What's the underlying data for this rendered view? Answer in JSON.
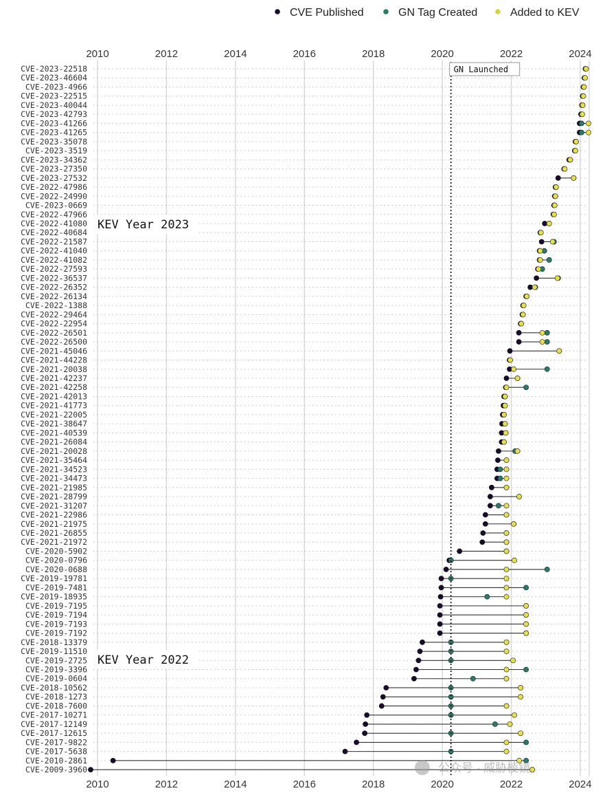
{
  "legend": {
    "placement": "top-right",
    "items": [
      {
        "label": "CVE Published",
        "color": "#1a0a2e"
      },
      {
        "label": "GN Tag Created",
        "color": "#2a7a6a"
      },
      {
        "label": "Added to KEV",
        "color": "#e8e04a"
      }
    ]
  },
  "annotations": {
    "gn_launched_label": "GN Launched",
    "gn_launched_x": 2020.25,
    "kev_year_2023_label": "KEV Year 2023",
    "kev_year_2022_label": "KEV Year 2022"
  },
  "watermark": "公众号 · 威胁棱镜",
  "chart_data": {
    "type": "dot-range",
    "xlim": [
      2009.8,
      2024.3
    ],
    "x_ticks": [
      2010,
      2012,
      2014,
      2016,
      2018,
      2020,
      2022,
      2024
    ],
    "grid": true,
    "colors": {
      "published": "#1a0a2e",
      "gn": "#2a7a6a",
      "kev": "#e8e04a"
    },
    "rows": [
      {
        "cve": "CVE-2023-22518",
        "published": 2024.15,
        "gn": 2024.17,
        "kev": 2024.17
      },
      {
        "cve": "CVE-2023-46604",
        "published": 2024.12,
        "gn": 2024.14,
        "kev": 2024.14
      },
      {
        "cve": "CVE-2023-4966",
        "published": 2024.09,
        "gn": 2024.11,
        "kev": 2024.11
      },
      {
        "cve": "CVE-2023-22515",
        "published": 2024.07,
        "gn": 2024.09,
        "kev": 2024.09
      },
      {
        "cve": "CVE-2023-40044",
        "published": 2024.05,
        "gn": 2024.07,
        "kev": 2024.07
      },
      {
        "cve": "CVE-2023-42793",
        "published": 2024.02,
        "gn": 2024.04,
        "kev": 2024.06
      },
      {
        "cve": "CVE-2023-41266",
        "published": 2023.98,
        "gn": 2024.04,
        "kev": 2024.24
      },
      {
        "cve": "CVE-2023-41265",
        "published": 2023.98,
        "gn": 2024.04,
        "kev": 2024.24
      },
      {
        "cve": "CVE-2023-35078",
        "published": 2023.86,
        "gn": 2023.88,
        "kev": 2023.88
      },
      {
        "cve": "CVE-2023-3519",
        "published": 2023.84,
        "gn": 2023.86,
        "kev": 2023.86
      },
      {
        "cve": "CVE-2023-34362",
        "published": 2023.68,
        "gn": 2023.71,
        "kev": 2023.71
      },
      {
        "cve": "CVE-2023-27350",
        "published": 2023.53,
        "gn": 2023.55,
        "kev": 2023.55
      },
      {
        "cve": "CVE-2023-27532",
        "published": 2023.36,
        "gn": 2023.81,
        "kev": 2023.81
      },
      {
        "cve": "CVE-2022-47986",
        "published": 2023.28,
        "gn": 2023.3,
        "kev": 2023.3
      },
      {
        "cve": "CVE-2022-24990",
        "published": 2023.26,
        "gn": 2023.28,
        "kev": 2023.28
      },
      {
        "cve": "CVE-2023-0669",
        "published": 2023.24,
        "gn": 2023.26,
        "kev": 2023.26
      },
      {
        "cve": "CVE-2022-47966",
        "published": 2023.22,
        "gn": 2023.24,
        "kev": 2023.24
      },
      {
        "cve": "CVE-2022-41080",
        "published": 2022.97,
        "gn": 2023.1,
        "kev": 2023.1
      },
      {
        "cve": "CVE-2022-40684",
        "published": 2022.84,
        "gn": 2022.86,
        "kev": 2022.86
      },
      {
        "cve": "CVE-2022-21587",
        "published": 2022.88,
        "gn": 2023.24,
        "kev": 2023.2
      },
      {
        "cve": "CVE-2022-41040",
        "published": 2022.82,
        "gn": 2022.96,
        "kev": 2022.84
      },
      {
        "cve": "CVE-2022-41082",
        "published": 2022.82,
        "gn": 2023.1,
        "kev": 2022.84
      },
      {
        "cve": "CVE-2022-27593",
        "published": 2022.77,
        "gn": 2022.9,
        "kev": 2022.79
      },
      {
        "cve": "CVE-2022-36537",
        "published": 2022.73,
        "gn": 2023.36,
        "kev": 2023.34
      },
      {
        "cve": "CVE-2022-26352",
        "published": 2022.55,
        "gn": 2022.7,
        "kev": 2022.68
      },
      {
        "cve": "CVE-2022-26134",
        "published": 2022.43,
        "gn": 2022.45,
        "kev": 2022.45
      },
      {
        "cve": "CVE-2022-1388",
        "published": 2022.34,
        "gn": 2022.36,
        "kev": 2022.36
      },
      {
        "cve": "CVE-2022-29464",
        "published": 2022.32,
        "gn": 2022.34,
        "kev": 2022.34
      },
      {
        "cve": "CVE-2022-22954",
        "published": 2022.27,
        "gn": 2022.29,
        "kev": 2022.29
      },
      {
        "cve": "CVE-2022-26501",
        "published": 2022.22,
        "gn": 2023.04,
        "kev": 2022.9
      },
      {
        "cve": "CVE-2022-26500",
        "published": 2022.22,
        "gn": 2023.04,
        "kev": 2022.9
      },
      {
        "cve": "CVE-2021-45046",
        "published": 2021.96,
        "gn": 2023.39,
        "kev": 2023.39
      },
      {
        "cve": "CVE-2021-44228",
        "published": 2021.95,
        "gn": 2021.97,
        "kev": 2021.97
      },
      {
        "cve": "CVE-2021-20038",
        "published": 2021.95,
        "gn": 2023.04,
        "kev": 2022.07
      },
      {
        "cve": "CVE-2021-42237",
        "published": 2021.86,
        "gn": 2022.18,
        "kev": 2022.18
      },
      {
        "cve": "CVE-2021-42258",
        "published": 2021.84,
        "gn": 2022.43,
        "kev": 2021.86
      },
      {
        "cve": "CVE-2021-42013",
        "published": 2021.79,
        "gn": 2021.82,
        "kev": 2021.82
      },
      {
        "cve": "CVE-2021-41773",
        "published": 2021.77,
        "gn": 2021.82,
        "kev": 2021.82
      },
      {
        "cve": "CVE-2021-22005",
        "published": 2021.75,
        "gn": 2021.79,
        "kev": 2021.79
      },
      {
        "cve": "CVE-2021-38647",
        "published": 2021.73,
        "gn": 2021.82,
        "kev": 2021.82
      },
      {
        "cve": "CVE-2021-40539",
        "published": 2021.72,
        "gn": 2021.84,
        "kev": 2021.84
      },
      {
        "cve": "CVE-2021-26084",
        "published": 2021.72,
        "gn": 2021.79,
        "kev": 2021.79
      },
      {
        "cve": "CVE-2021-20028",
        "published": 2021.63,
        "gn": 2022.11,
        "kev": 2022.18
      },
      {
        "cve": "CVE-2021-35464",
        "published": 2021.61,
        "gn": 2021.86,
        "kev": 2021.86
      },
      {
        "cve": "CVE-2021-34523",
        "published": 2021.59,
        "gn": 2021.68,
        "kev": 2021.86
      },
      {
        "cve": "CVE-2021-34473",
        "published": 2021.59,
        "gn": 2021.68,
        "kev": 2021.86
      },
      {
        "cve": "CVE-2021-21985",
        "published": 2021.43,
        "gn": 2021.86,
        "kev": 2021.86
      },
      {
        "cve": "CVE-2021-28799",
        "published": 2021.39,
        "gn": 2022.23,
        "kev": 2022.23
      },
      {
        "cve": "CVE-2021-31207",
        "published": 2021.39,
        "gn": 2021.63,
        "kev": 2021.86
      },
      {
        "cve": "CVE-2021-22986",
        "published": 2021.25,
        "gn": 2021.86,
        "kev": 2021.86
      },
      {
        "cve": "CVE-2021-21975",
        "published": 2021.25,
        "gn": 2022.07,
        "kev": 2022.07
      },
      {
        "cve": "CVE-2021-26855",
        "published": 2021.18,
        "gn": 2021.86,
        "kev": 2021.86
      },
      {
        "cve": "CVE-2021-21972",
        "published": 2021.16,
        "gn": 2021.86,
        "kev": 2021.86
      },
      {
        "cve": "CVE-2020-5902",
        "published": 2020.5,
        "gn": 2021.86,
        "kev": 2021.86
      },
      {
        "cve": "CVE-2020-0796",
        "published": 2020.2,
        "gn": 2020.25,
        "kev": 2022.09
      },
      {
        "cve": "CVE-2020-0688",
        "published": 2020.11,
        "gn": 2023.04,
        "kev": 2021.86
      },
      {
        "cve": "CVE-2019-19781",
        "published": 2019.97,
        "gn": 2020.25,
        "kev": 2021.86
      },
      {
        "cve": "CVE-2019-7481",
        "published": 2019.97,
        "gn": 2022.43,
        "kev": 2021.86
      },
      {
        "cve": "CVE-2019-18935",
        "published": 2019.95,
        "gn": 2021.3,
        "kev": 2021.86
      },
      {
        "cve": "CVE-2019-7195",
        "published": 2019.93,
        "gn": 2022.43,
        "kev": 2022.43
      },
      {
        "cve": "CVE-2019-7194",
        "published": 2019.93,
        "gn": 2022.43,
        "kev": 2022.43
      },
      {
        "cve": "CVE-2019-7193",
        "published": 2019.93,
        "gn": 2022.43,
        "kev": 2022.43
      },
      {
        "cve": "CVE-2019-7192",
        "published": 2019.93,
        "gn": 2022.43,
        "kev": 2022.43
      },
      {
        "cve": "CVE-2018-13379",
        "published": 2019.42,
        "gn": 2020.25,
        "kev": 2021.86
      },
      {
        "cve": "CVE-2019-11510",
        "published": 2019.35,
        "gn": 2020.25,
        "kev": 2021.86
      },
      {
        "cve": "CVE-2019-2725",
        "published": 2019.31,
        "gn": 2020.25,
        "kev": 2022.05
      },
      {
        "cve": "CVE-2019-3396",
        "published": 2019.24,
        "gn": 2022.43,
        "kev": 2021.86
      },
      {
        "cve": "CVE-2019-0604",
        "published": 2019.18,
        "gn": 2020.89,
        "kev": 2021.86
      },
      {
        "cve": "CVE-2018-10562",
        "published": 2018.37,
        "gn": 2020.25,
        "kev": 2022.27
      },
      {
        "cve": "CVE-2018-1273",
        "published": 2018.28,
        "gn": 2020.25,
        "kev": 2022.27
      },
      {
        "cve": "CVE-2018-7600",
        "published": 2018.24,
        "gn": 2020.25,
        "kev": 2021.86
      },
      {
        "cve": "CVE-2017-10271",
        "published": 2017.81,
        "gn": 2020.25,
        "kev": 2022.09
      },
      {
        "cve": "CVE-2017-12149",
        "published": 2017.77,
        "gn": 2021.53,
        "kev": 2021.96
      },
      {
        "cve": "CVE-2017-12615",
        "published": 2017.75,
        "gn": 2020.25,
        "kev": 2022.27
      },
      {
        "cve": "CVE-2017-9822",
        "published": 2017.51,
        "gn": 2022.43,
        "kev": 2021.86
      },
      {
        "cve": "CVE-2017-5638",
        "published": 2017.18,
        "gn": 2020.25,
        "kev": 2021.86
      },
      {
        "cve": "CVE-2010-2861",
        "published": 2010.45,
        "gn": 2022.43,
        "kev": 2022.23
      },
      {
        "cve": "CVE-2009-3960",
        "published": 2009.8,
        "gn": 2022.61,
        "kev": 2022.61
      }
    ]
  }
}
